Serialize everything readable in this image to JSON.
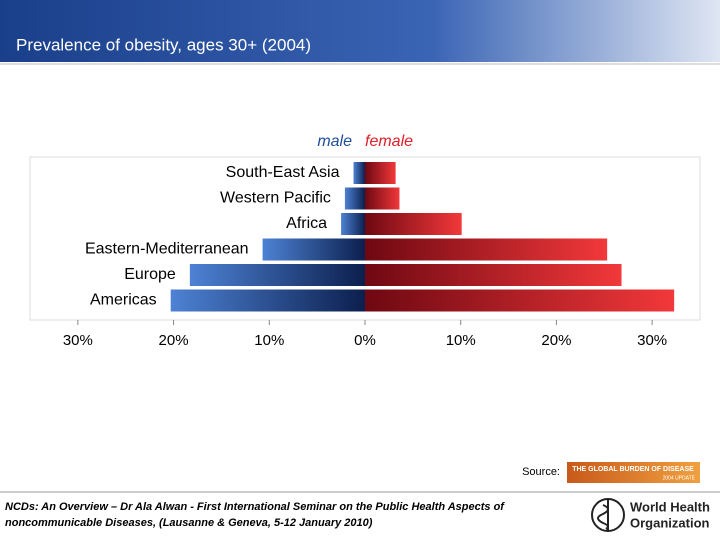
{
  "chart_data": {
    "type": "butterfly",
    "title": "Prevalence of obesity, ages 30+ (2004)",
    "categories": [
      "South-East Asia",
      "Western Pacific",
      "Africa",
      "Eastern-Mediterranean",
      "Europe",
      "Americas"
    ],
    "series": [
      {
        "name": "male",
        "color": "#1f4e9a",
        "values": [
          1.2,
          2.1,
          2.5,
          10.7,
          18.3,
          20.3
        ]
      },
      {
        "name": "female",
        "color": "#e0202a",
        "values": [
          3.2,
          3.6,
          10.1,
          25.3,
          26.8,
          32.3
        ]
      }
    ],
    "xlim": [
      -35,
      35
    ],
    "xticks": [
      {
        "value": -30,
        "label": "30%"
      },
      {
        "value": -20,
        "label": "20%"
      },
      {
        "value": -10,
        "label": "10%"
      },
      {
        "value": 0,
        "label": "0%"
      },
      {
        "value": 10,
        "label": "10%"
      },
      {
        "value": 20,
        "label": "20%"
      },
      {
        "value": 30,
        "label": "30%"
      }
    ]
  },
  "source_label": "Source:",
  "source_logo": {
    "line1": "THE GLOBAL BURDEN OF DISEASE",
    "line2": "2004 UPDATE"
  },
  "citation": [
    "NCDs: An Overview – Dr Ala Alwan - First International Seminar on the Public Health Aspects of",
    "noncommunicable Diseases, (Lausanne & Geneva, 5-12 January 2010)"
  ],
  "organization": [
    "World Health",
    "Organization"
  ]
}
